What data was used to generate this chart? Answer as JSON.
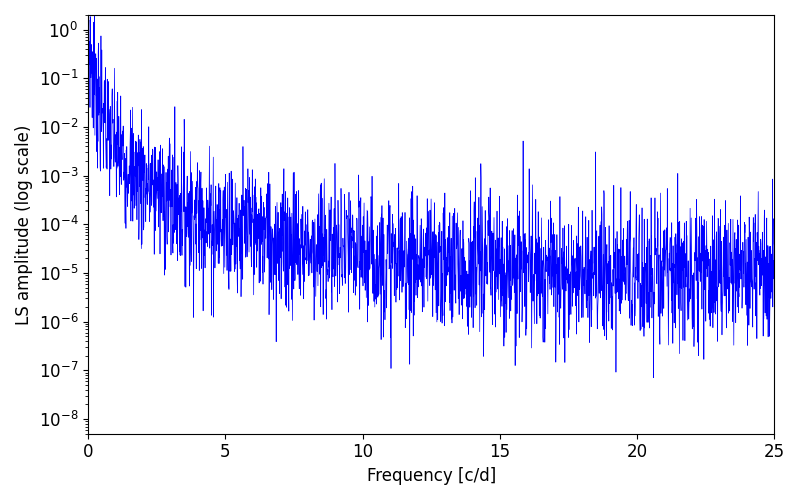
{
  "xlabel": "Frequency [c/d]",
  "ylabel": "LS amplitude (log scale)",
  "xlim": [
    0,
    25
  ],
  "ylim_log": [
    5e-09,
    2.0
  ],
  "line_color": "#0000ff",
  "line_width": 0.5,
  "freq_max": 25.0,
  "n_points": 2500,
  "seed": 7,
  "background_color": "#ffffff",
  "figsize": [
    8.0,
    5.0
  ],
  "dpi": 100,
  "tick_labelsize": 12,
  "axis_labelsize": 12
}
